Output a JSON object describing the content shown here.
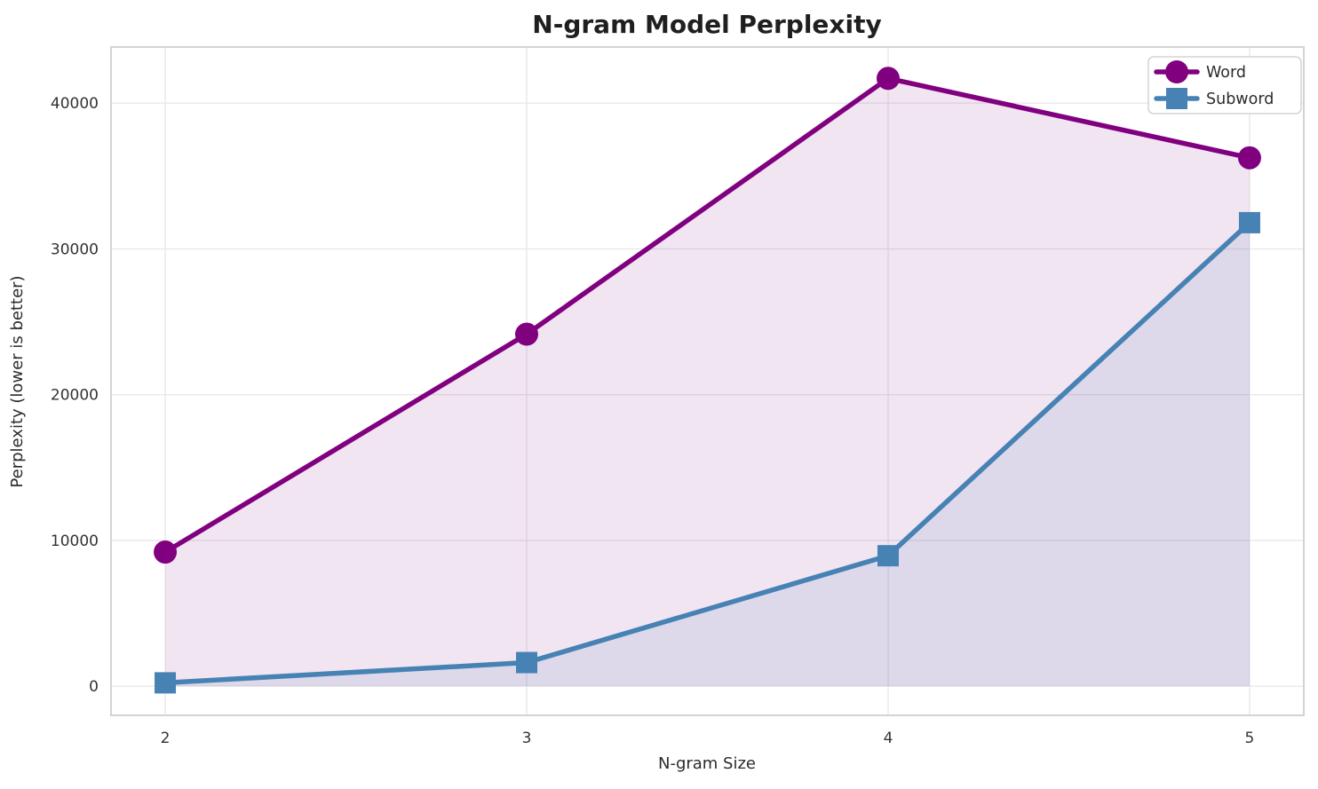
{
  "chart_data": {
    "type": "line",
    "title": "N-gram Model Perplexity",
    "xlabel": "N-gram Size",
    "ylabel": "Perplexity (lower is better)",
    "x": [
      2,
      3,
      4,
      5
    ],
    "series": [
      {
        "name": "Word",
        "values": [
          9200,
          24150,
          41700,
          36250
        ],
        "color": "#800080",
        "marker": "circle",
        "fill_opacity": 0.1
      },
      {
        "name": "Subword",
        "values": [
          230,
          1620,
          8950,
          31800
        ],
        "color": "#4682B4",
        "marker": "square",
        "fill_opacity": 0.12
      }
    ],
    "xticks": [
      "2",
      "3",
      "4",
      "5"
    ],
    "xtick_values": [
      2,
      3,
      4,
      5
    ],
    "yticks": [
      "0",
      "10000",
      "20000",
      "30000",
      "40000"
    ],
    "ytick_values": [
      0,
      10000,
      20000,
      30000,
      40000
    ],
    "xlim": [
      1.85,
      5.15
    ],
    "ylim": [
      -2000,
      43850
    ],
    "grid": true,
    "fill_to_zero": true,
    "legend_position": "upper right",
    "colors": {
      "background": "#FFFFFF",
      "grid": "#E8E8E8",
      "spine": "#D3D3D3",
      "legend_border": "#CCCCCC",
      "text": "#262626"
    }
  }
}
